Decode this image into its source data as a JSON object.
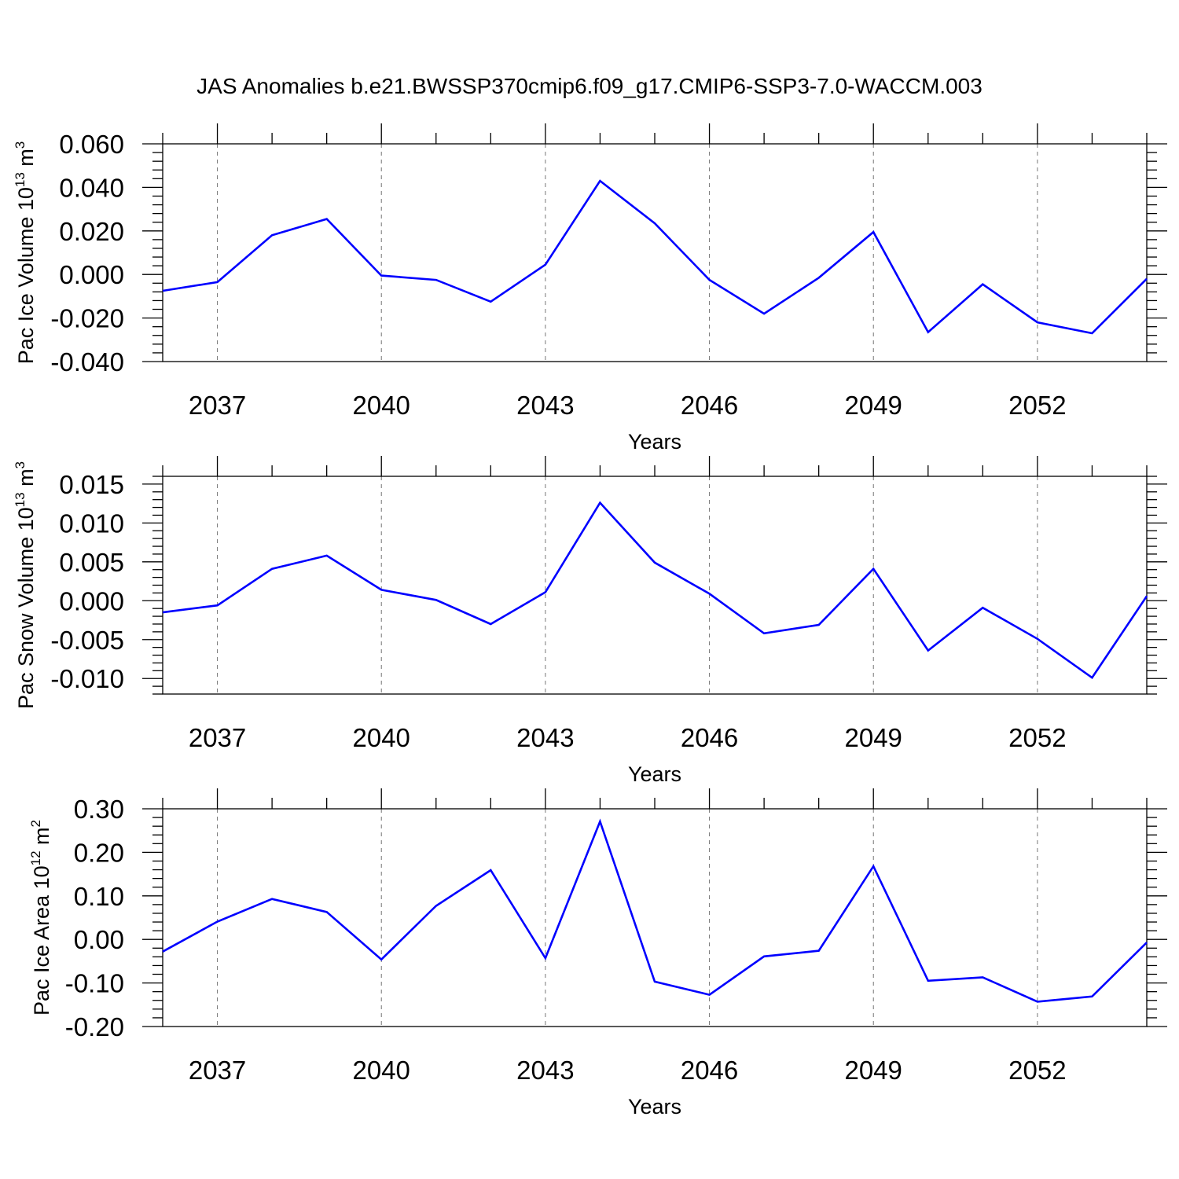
{
  "title": "JAS Anomalies b.e21.BWSSP370cmip6.f09_g17.CMIP6-SSP3-7.0-WACCM.003",
  "colors": {
    "line": "#0000ff",
    "grid": "#777777",
    "axis": "#000000"
  },
  "chart_data": [
    {
      "type": "line",
      "ylabel": {
        "base": "Pac Ice Volume 10",
        "exp": "13",
        "unit": " m",
        "unit_exp": "3"
      },
      "xlabel": "Years",
      "xlim": [
        2036,
        2054
      ],
      "ylim": [
        -0.04,
        0.06
      ],
      "yticks": [
        -0.04,
        -0.02,
        0.0,
        0.02,
        0.04,
        0.06
      ],
      "yticklabels": [
        "-0.040",
        "-0.020",
        "0.000",
        "0.020",
        "0.040",
        "0.060"
      ],
      "xticks": [
        2037,
        2040,
        2043,
        2046,
        2049,
        2052
      ],
      "xticklabels": [
        "2037",
        "2040",
        "2043",
        "2046",
        "2049",
        "2052"
      ],
      "grid": "vertical dashed at labeled years",
      "series": [
        {
          "x": [
            2036,
            2037,
            2038,
            2039,
            2040,
            2041,
            2042,
            2043,
            2044,
            2045,
            2046,
            2047,
            2048,
            2049,
            2050,
            2051,
            2052,
            2053,
            2054
          ],
          "values": [
            -0.0075,
            -0.0035,
            0.018,
            0.0255,
            -0.0005,
            -0.0025,
            -0.0125,
            0.0045,
            0.043,
            0.0235,
            -0.0025,
            -0.018,
            -0.0015,
            0.0195,
            -0.0265,
            -0.0045,
            -0.022,
            -0.027,
            -0.002
          ]
        }
      ]
    },
    {
      "type": "line",
      "ylabel": {
        "base": "Pac Snow Volume 10",
        "exp": "13",
        "unit": " m",
        "unit_exp": "3"
      },
      "xlabel": "Years",
      "xlim": [
        2036,
        2054
      ],
      "ylim": [
        -0.012,
        0.016
      ],
      "yticks": [
        -0.01,
        -0.005,
        0.0,
        0.005,
        0.01,
        0.015
      ],
      "yticklabels": [
        "-0.010",
        "-0.005",
        "0.000",
        "0.005",
        "0.010",
        "0.015"
      ],
      "xticks": [
        2037,
        2040,
        2043,
        2046,
        2049,
        2052
      ],
      "xticklabels": [
        "2037",
        "2040",
        "2043",
        "2046",
        "2049",
        "2052"
      ],
      "grid": "vertical dashed at labeled years",
      "series": [
        {
          "x": [
            2036,
            2037,
            2038,
            2039,
            2040,
            2041,
            2042,
            2043,
            2044,
            2045,
            2046,
            2047,
            2048,
            2049,
            2050,
            2051,
            2052,
            2053,
            2054
          ],
          "values": [
            -0.0015,
            -0.0006,
            0.0041,
            0.0058,
            0.0014,
            0.0001,
            -0.003,
            0.0011,
            0.0126,
            0.0049,
            0.0009,
            -0.0042,
            -0.0031,
            0.0041,
            -0.0064,
            -0.0009,
            -0.0049,
            -0.0099,
            0.0006
          ]
        }
      ]
    },
    {
      "type": "line",
      "ylabel": {
        "base": "Pac Ice Area 10",
        "exp": "12",
        "unit": " m",
        "unit_exp": "2"
      },
      "xlabel": "Years",
      "xlim": [
        2036,
        2054
      ],
      "ylim": [
        -0.2,
        0.3
      ],
      "yticks": [
        -0.2,
        -0.1,
        0.0,
        0.1,
        0.2,
        0.3
      ],
      "yticklabels": [
        "-0.20",
        "-0.10",
        "0.00",
        "0.10",
        "0.20",
        "0.30"
      ],
      "xticks": [
        2037,
        2040,
        2043,
        2046,
        2049,
        2052
      ],
      "xticklabels": [
        "2037",
        "2040",
        "2043",
        "2046",
        "2049",
        "2052"
      ],
      "grid": "vertical dashed at labeled years",
      "series": [
        {
          "x": [
            2036,
            2037,
            2038,
            2039,
            2040,
            2041,
            2042,
            2043,
            2044,
            2045,
            2046,
            2047,
            2048,
            2049,
            2050,
            2051,
            2052,
            2053,
            2054
          ],
          "values": [
            -0.028,
            0.041,
            0.093,
            0.063,
            -0.046,
            0.077,
            0.159,
            -0.043,
            0.271,
            -0.097,
            -0.127,
            -0.039,
            -0.026,
            0.168,
            -0.095,
            -0.087,
            -0.143,
            -0.131,
            -0.007
          ]
        }
      ]
    }
  ]
}
